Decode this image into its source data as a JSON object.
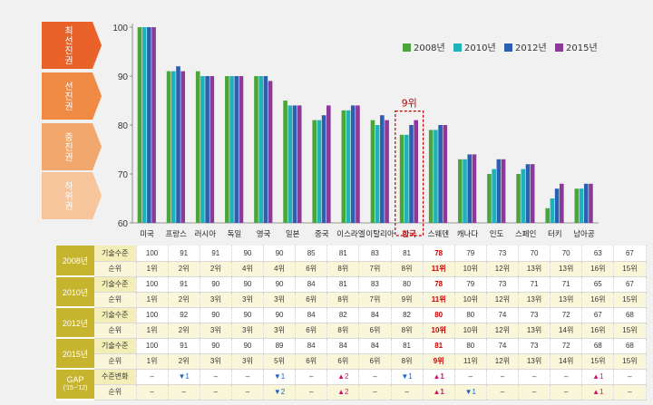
{
  "tiers": [
    {
      "label": "최선진권",
      "color": "#e8622a"
    },
    {
      "label": "선진권",
      "color": "#ef8a45"
    },
    {
      "label": "중진권",
      "color": "#f2a86c"
    },
    {
      "label": "하위권",
      "color": "#f6c59b"
    }
  ],
  "chart_data": {
    "type": "bar",
    "categories": [
      "미국",
      "프랑스",
      "러시아",
      "독일",
      "영국",
      "일본",
      "중국",
      "이스라엘",
      "이탈리아",
      "한국",
      "스웨덴",
      "캐나다",
      "인도",
      "스페인",
      "터키",
      "남아공"
    ],
    "series": [
      {
        "name": "2008년",
        "color": "#4aa53a",
        "values": [
          100,
          91,
          91,
          90,
          90,
          85,
          81,
          83,
          81,
          78,
          79,
          73,
          70,
          70,
          63,
          67
        ]
      },
      {
        "name": "2010년",
        "color": "#1cb3b9",
        "values": [
          100,
          91,
          90,
          90,
          90,
          84,
          81,
          83,
          80,
          78,
          79,
          73,
          71,
          71,
          65,
          67
        ]
      },
      {
        "name": "2012년",
        "color": "#2b5fb3",
        "values": [
          100,
          92,
          90,
          90,
          90,
          84,
          82,
          84,
          82,
          80,
          80,
          74,
          73,
          72,
          67,
          68
        ]
      },
      {
        "name": "2015년",
        "color": "#8b3a97",
        "values": [
          100,
          91,
          90,
          90,
          89,
          84,
          84,
          84,
          81,
          81,
          80,
          74,
          73,
          72,
          68,
          68
        ]
      }
    ],
    "ylim": [
      60,
      100
    ],
    "yticks": [
      60,
      70,
      80,
      90,
      100
    ],
    "highlight": {
      "category": "한국",
      "label": "9위",
      "color": "#c00000"
    },
    "legend": "top-right"
  },
  "table": {
    "gap_title": "GAP",
    "gap_sub": "('15~'12)",
    "rows": [
      {
        "year": "2008년",
        "metric": "기술수준",
        "values": [
          "100",
          "91",
          "91",
          "90",
          "90",
          "85",
          "81",
          "83",
          "81",
          "78",
          "79",
          "73",
          "70",
          "70",
          "63",
          "67"
        ]
      },
      {
        "year": "",
        "metric": "순위",
        "values": [
          "1위",
          "2위",
          "2위",
          "4위",
          "4위",
          "6위",
          "8위",
          "7위",
          "8위",
          "11위",
          "10위",
          "12위",
          "13위",
          "13위",
          "16위",
          "15위"
        ]
      },
      {
        "year": "2010년",
        "metric": "기술수준",
        "values": [
          "100",
          "91",
          "90",
          "90",
          "90",
          "84",
          "81",
          "83",
          "80",
          "78",
          "79",
          "73",
          "71",
          "71",
          "65",
          "67"
        ]
      },
      {
        "year": "",
        "metric": "순위",
        "values": [
          "1위",
          "2위",
          "3위",
          "3위",
          "3위",
          "6위",
          "8위",
          "7위",
          "9위",
          "11위",
          "10위",
          "12위",
          "13위",
          "13위",
          "16위",
          "15위"
        ]
      },
      {
        "year": "2012년",
        "metric": "기술수준",
        "values": [
          "100",
          "92",
          "90",
          "90",
          "90",
          "84",
          "82",
          "84",
          "82",
          "80",
          "80",
          "74",
          "73",
          "72",
          "67",
          "68"
        ]
      },
      {
        "year": "",
        "metric": "순위",
        "values": [
          "1위",
          "2위",
          "3위",
          "3위",
          "3위",
          "6위",
          "8위",
          "6위",
          "8위",
          "10위",
          "10위",
          "12위",
          "13위",
          "14위",
          "16위",
          "15위"
        ]
      },
      {
        "year": "2015년",
        "metric": "기술수준",
        "values": [
          "100",
          "91",
          "90",
          "90",
          "89",
          "84",
          "84",
          "84",
          "81",
          "81",
          "80",
          "74",
          "73",
          "72",
          "68",
          "68"
        ]
      },
      {
        "year": "",
        "metric": "순위",
        "values": [
          "1위",
          "2위",
          "3위",
          "3위",
          "5위",
          "6위",
          "6위",
          "6위",
          "8위",
          "9위",
          "11위",
          "12위",
          "13위",
          "14위",
          "15위",
          "15위"
        ]
      },
      {
        "year": "GAP",
        "metric": "수준변화",
        "values": [
          "–",
          "▼1",
          "–",
          "–",
          "▼1",
          "–",
          "▲2",
          "–",
          "▼1",
          "▲1",
          "–",
          "–",
          "–",
          "–",
          "▲1",
          "–"
        ]
      },
      {
        "year": "",
        "metric": "순위",
        "values": [
          "–",
          "–",
          "–",
          "–",
          "▼2",
          "–",
          "▲2",
          "–",
          "–",
          "▲1",
          "▼1",
          "–",
          "–",
          "–",
          "▲1",
          "–"
        ]
      }
    ]
  }
}
